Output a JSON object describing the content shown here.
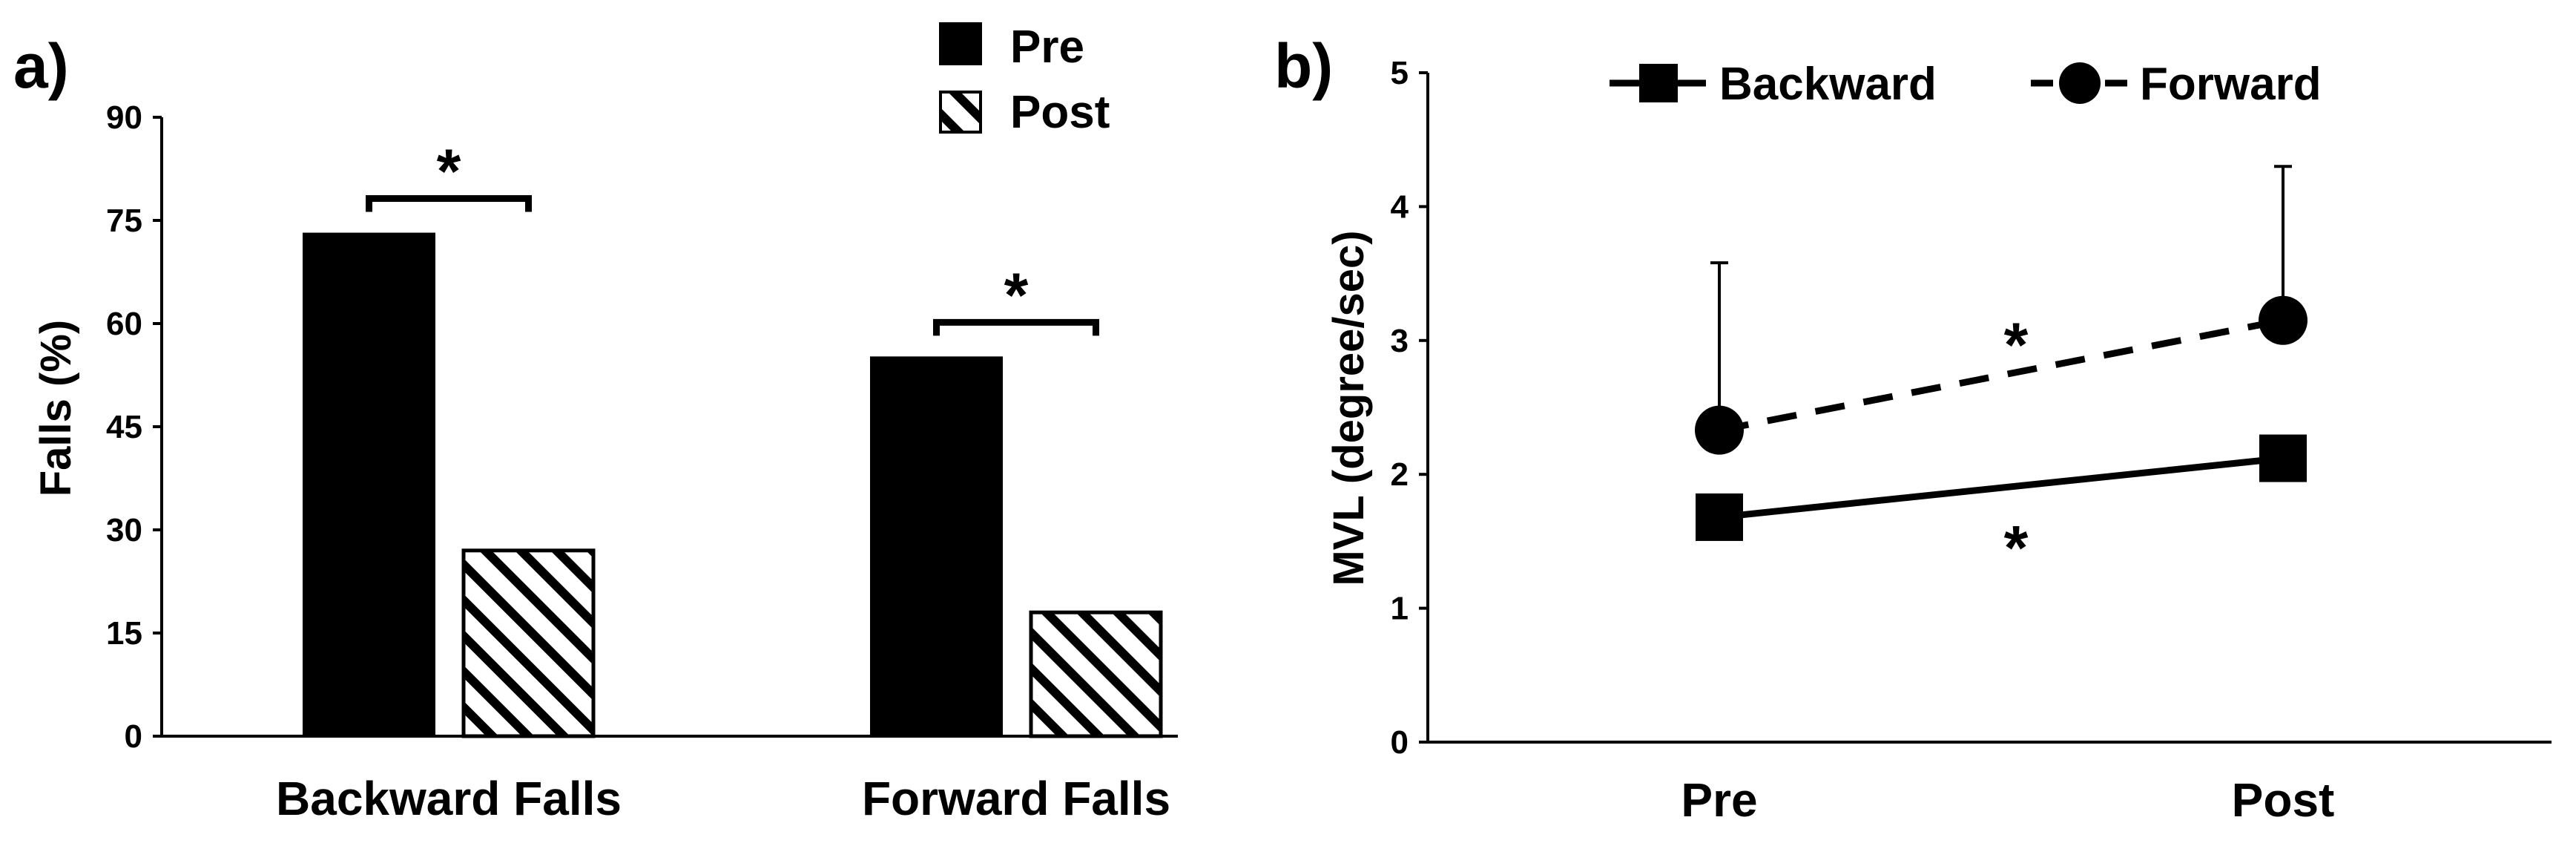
{
  "colors": {
    "ink": "#000000",
    "background": "#ffffff"
  },
  "chart_data": [
    {
      "type": "bar",
      "panel": "a)",
      "title": "",
      "xlabel": "",
      "ylabel": "Falls (%)",
      "ylim": [
        0,
        90
      ],
      "yticks": [
        "0",
        "15",
        "30",
        "45",
        "60",
        "75",
        "90"
      ],
      "categories": [
        "Backward Falls",
        "Forward Falls"
      ],
      "series": [
        {
          "name": "Pre",
          "values": [
            73,
            55
          ],
          "fill": "solid-black"
        },
        {
          "name": "Post",
          "values": [
            27,
            18
          ],
          "fill": "diagonal-hatch"
        }
      ],
      "annotations": [
        "*",
        "*"
      ],
      "grid": false,
      "legend_position": "top-center"
    },
    {
      "type": "line",
      "panel": "b)",
      "title": "",
      "xlabel": "",
      "ylabel": "MVL (degree/sec)",
      "ylim": [
        0,
        5
      ],
      "yticks": [
        "0",
        "1",
        "2",
        "3",
        "4",
        "5"
      ],
      "x": [
        "Pre",
        "Post"
      ],
      "series": [
        {
          "name": "Backward",
          "values": [
            1.68,
            2.12
          ],
          "error": [
            0,
            0
          ],
          "marker": "square",
          "line_style": "solid"
        },
        {
          "name": "Forward",
          "values": [
            2.33,
            3.15
          ],
          "error": [
            1.25,
            1.15
          ],
          "marker": "circle",
          "line_style": "dashed"
        }
      ],
      "annotations": [
        "*",
        "*"
      ],
      "grid": false,
      "legend_position": "top"
    }
  ]
}
